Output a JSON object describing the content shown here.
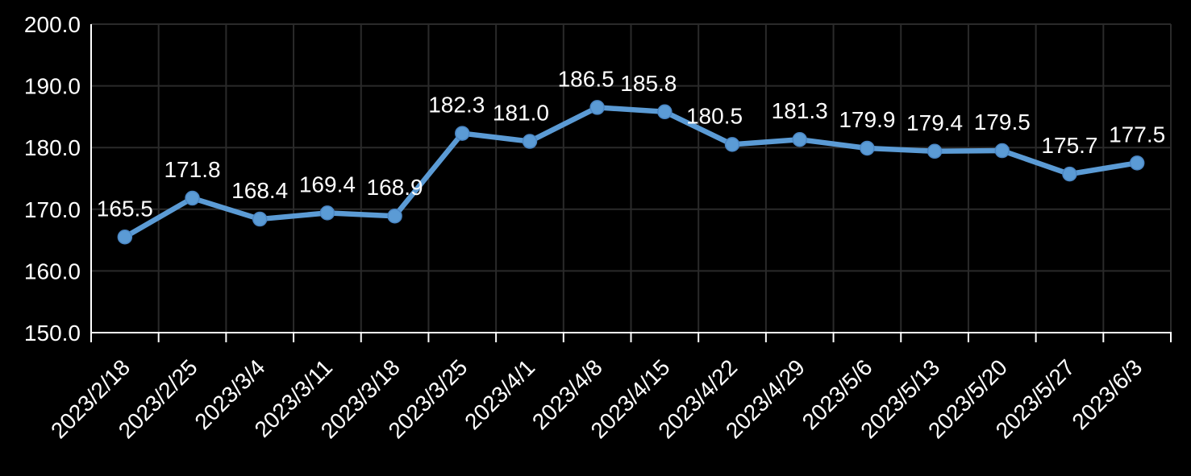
{
  "chart_data": {
    "type": "line",
    "title": "",
    "xlabel": "",
    "ylabel": "",
    "categories": [
      "2023/2/18",
      "2023/2/25",
      "2023/3/4",
      "2023/3/11",
      "2023/3/18",
      "2023/3/25",
      "2023/4/1",
      "2023/4/8",
      "2023/4/15",
      "2023/4/22",
      "2023/4/29",
      "2023/5/6",
      "2023/5/13",
      "2023/5/20",
      "2023/5/27",
      "2023/6/3"
    ],
    "series": [
      {
        "name": "value",
        "values": [
          165.5,
          171.8,
          168.4,
          169.4,
          168.9,
          182.3,
          181.0,
          186.5,
          185.8,
          180.5,
          181.3,
          179.9,
          179.4,
          179.5,
          175.7,
          177.5
        ],
        "data_labels": [
          "165.5",
          "171.8",
          "168.4",
          "169.4",
          "168.9",
          "182.3",
          "181.0",
          "186.5",
          "185.8",
          "180.5",
          "181.3",
          "179.9",
          "179.4",
          "179.5",
          "175.7",
          "177.5"
        ],
        "label_dx": [
          0,
          0,
          0,
          0,
          0,
          -7,
          -11,
          -14,
          -20,
          -22,
          0,
          0,
          0,
          0,
          0,
          0
        ]
      }
    ],
    "ylim": [
      150,
      200
    ],
    "yticks": [
      150,
      160,
      170,
      180,
      190,
      200
    ],
    "ytick_labels": [
      "150.0",
      "160.0",
      "170.0",
      "180.0",
      "190.0",
      "200.0"
    ],
    "x_label_rotation_deg": -45,
    "grid": true,
    "legend": "none",
    "colors": {
      "background": "#000000",
      "text": "#ffffff",
      "grid": "#2a2a2a",
      "axis": "#ffffff",
      "line": "#5B9BD5",
      "marker": "#5B9BD5",
      "marker_edge": "#4a86c4"
    }
  }
}
